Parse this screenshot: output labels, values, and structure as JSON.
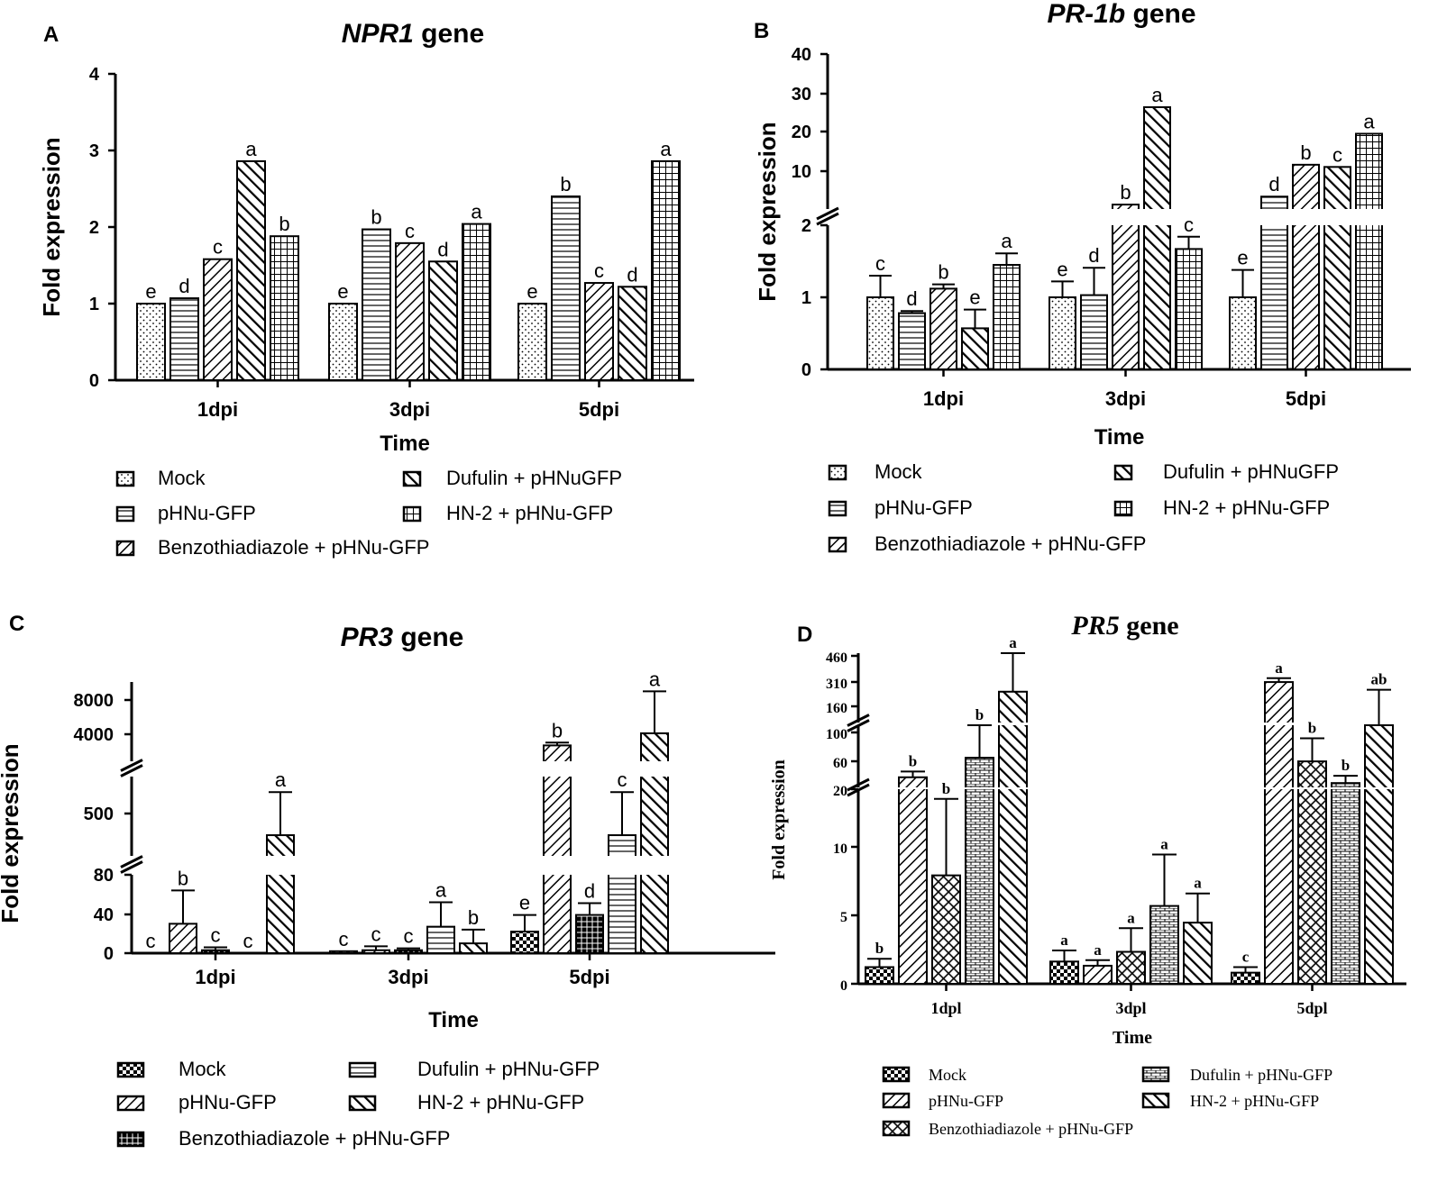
{
  "figure": {
    "panel_labels": [
      "A",
      "B",
      "C",
      "D"
    ]
  },
  "chart_data": [
    {
      "id": "A",
      "type": "bar",
      "panel_label": "A",
      "title_italic": "NPR1",
      "title_rest": " gene",
      "xlabel": "Time",
      "ylabel": "Fold expression",
      "categories": [
        "1dpi",
        "3dpi",
        "5dpi"
      ],
      "yticks": [
        "0",
        "1",
        "2",
        "3",
        "4"
      ],
      "segments": [
        {
          "d0": 0,
          "d1": 4
        }
      ],
      "series": [
        {
          "name": "Mock",
          "pattern": "dots",
          "values": [
            1.0,
            1.0,
            1.0
          ],
          "errors": [
            0,
            0,
            0
          ],
          "letters": [
            "e",
            "e",
            "e"
          ]
        },
        {
          "name": "pHNu-GFP",
          "pattern": "hlines",
          "values": [
            1.07,
            1.97,
            2.4
          ],
          "errors": [
            0,
            0,
            0
          ],
          "letters": [
            "d",
            "b",
            "b"
          ]
        },
        {
          "name": "Benzothiadiazole + pHNu-GFP",
          "pattern": "diag",
          "values": [
            1.58,
            1.79,
            1.27
          ],
          "errors": [
            0,
            0,
            0
          ],
          "letters": [
            "c",
            "c",
            "c"
          ]
        },
        {
          "name": "Dufulin + pHNuGFP",
          "pattern": "diagr",
          "values": [
            2.86,
            1.55,
            1.22
          ],
          "errors": [
            0,
            0,
            0
          ],
          "letters": [
            "a",
            "d",
            "d"
          ]
        },
        {
          "name": "HN-2 + pHNu-GFP",
          "pattern": "grid",
          "values": [
            1.88,
            2.04,
            2.86
          ],
          "errors": [
            0,
            0,
            0
          ],
          "letters": [
            "b",
            "a",
            "a"
          ]
        }
      ],
      "legend_order": [
        0,
        3,
        1,
        4,
        2
      ]
    },
    {
      "id": "B",
      "type": "bar",
      "panel_label": "B",
      "title_italic": "PR-1b",
      "title_rest": " gene",
      "xlabel": "Time",
      "ylabel": "Fold expression",
      "categories": [
        "1dpi",
        "3dpi",
        "5dpi"
      ],
      "yticks": [
        "0",
        "1",
        "2",
        "10",
        "20",
        "30",
        "40"
      ],
      "segments": [
        {
          "d0": 0,
          "d1": 2
        },
        {
          "d0": 5,
          "d1": 40
        }
      ],
      "series": [
        {
          "name": "Mock",
          "pattern": "dots",
          "values": [
            1.0,
            1.0,
            1.0
          ],
          "errors": [
            0.3,
            0.22,
            0.38
          ],
          "letters": [
            "c",
            "e",
            "e"
          ]
        },
        {
          "name": "pHNu-GFP",
          "pattern": "hlines",
          "values": [
            0.78,
            1.03,
            7.8
          ],
          "errors": [
            0.03,
            0.38,
            0
          ],
          "letters": [
            "d",
            "d",
            "d"
          ]
        },
        {
          "name": "Benzothiadiazole + pHNu-GFP",
          "pattern": "diag",
          "values": [
            1.12,
            6.0,
            15.0
          ],
          "errors": [
            0.06,
            0,
            0
          ],
          "letters": [
            "b",
            "b",
            "b"
          ]
        },
        {
          "name": "Dufulin + pHNuGFP",
          "pattern": "diagr",
          "values": [
            0.57,
            28.0,
            14.5
          ],
          "errors": [
            0.26,
            0,
            0
          ],
          "letters": [
            "e",
            "a",
            "c"
          ]
        },
        {
          "name": "HN-2 + pHNu-GFP",
          "pattern": "grid",
          "values": [
            1.45,
            1.67,
            22.0
          ],
          "errors": [
            0.16,
            0.17,
            0
          ],
          "letters": [
            "a",
            "c",
            "a"
          ]
        }
      ],
      "legend_order": [
        0,
        3,
        1,
        4,
        2
      ]
    },
    {
      "id": "C",
      "type": "bar",
      "panel_label": "C",
      "title_italic": "PR3",
      "title_rest": " gene",
      "xlabel": "Time",
      "ylabel": "Fold expression",
      "categories": [
        "1dpi",
        "3dpi",
        "5dpi"
      ],
      "yticks": [
        "0",
        "40",
        "80",
        "500",
        "4000",
        "8000"
      ],
      "segments": [
        {
          "d0": 0,
          "d1": 80
        },
        {
          "d0": 80,
          "d1": 1000
        },
        {
          "d0": 1000,
          "d1": 9500
        }
      ],
      "series": [
        {
          "name": "Mock",
          "pattern": "checker",
          "values": [
            0,
            2,
            22
          ],
          "errors": [
            0,
            0,
            17
          ],
          "letters": [
            "c",
            "c",
            "e"
          ]
        },
        {
          "name": "pHNu-GFP",
          "pattern": "diag",
          "values": [
            30,
            3,
            2700
          ],
          "errors": [
            34,
            4,
            300
          ],
          "letters": [
            "b",
            "c",
            "b"
          ]
        },
        {
          "name": "Benzothiadiazole + pHNu-GFP",
          "pattern": "bgrid",
          "values": [
            3,
            3,
            39
          ],
          "errors": [
            3,
            2,
            12
          ],
          "letters": [
            "c",
            "c",
            "d"
          ]
        },
        {
          "name": "Dufulin + pHNu-GFP",
          "pattern": "hlines",
          "values": [
            0,
            27,
            320
          ],
          "errors": [
            0,
            25,
            500
          ],
          "letters": [
            "c",
            "a",
            "c"
          ]
        },
        {
          "name": "HN-2 + pHNu-GFP",
          "pattern": "diagr",
          "values": [
            320,
            10,
            4000
          ],
          "errors": [
            500,
            14,
            4500
          ],
          "letters": [
            "a",
            "b",
            "a"
          ]
        }
      ],
      "legend_order": [
        0,
        3,
        1,
        4,
        2
      ]
    },
    {
      "id": "D",
      "type": "bar",
      "panel_label": "D",
      "title_italic": "PR5",
      "title_rest": " gene",
      "xlabel": "Time",
      "ylabel": "Fold expression",
      "categories": [
        "1dpl",
        "3dpl",
        "5dpl"
      ],
      "yticks": [
        "0",
        "5",
        "10",
        "20",
        "60",
        "100",
        "160",
        "310",
        "460"
      ],
      "segments": [
        {
          "d0": 0,
          "d1": 14
        },
        {
          "d0": 14,
          "d1": 100
        },
        {
          "d0": 100,
          "d1": 460
        }
      ],
      "series": [
        {
          "name": "Mock",
          "pattern": "checker",
          "values": [
            1.2,
            1.6,
            0.8
          ],
          "errors": [
            0.6,
            0.8,
            0.4
          ],
          "letters": [
            "b",
            "a",
            "c"
          ]
        },
        {
          "name": "pHNu-GFP",
          "pattern": "diag",
          "values": [
            28,
            1.3,
            310
          ],
          "errors": [
            8,
            0.4,
            20
          ],
          "letters": [
            "b",
            "a",
            "a"
          ]
        },
        {
          "name": "Benzothiadiazole + pHNu-GFP",
          "pattern": "cross",
          "values": [
            7.8,
            2.3,
            50
          ],
          "errors": [
            5.5,
            1.7,
            32
          ],
          "letters": [
            "b",
            "a",
            "b"
          ]
        },
        {
          "name": "Dufulin + pHNu-GFP",
          "pattern": "brick",
          "values": [
            55,
            5.6,
            20
          ],
          "errors": [
            45,
            3.7,
            10
          ],
          "letters": [
            "b",
            "a",
            "b"
          ]
        },
        {
          "name": "HN-2 + pHNu-GFP",
          "pattern": "diagr",
          "values": [
            260,
            4.4,
            100
          ],
          "errors": [
            200,
            2.1,
            170
          ],
          "letters": [
            "a",
            "a",
            "ab"
          ]
        }
      ],
      "legend_order": [
        0,
        3,
        1,
        4,
        2
      ]
    }
  ]
}
